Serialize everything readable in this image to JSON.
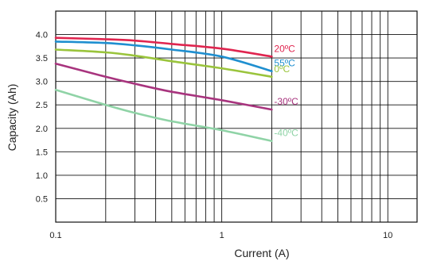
{
  "chart_data": {
    "type": "line",
    "xlabel": "Current (A)",
    "ylabel": "Capacity (Ah)",
    "xscale": "log",
    "xlim": [
      0.1,
      15
    ],
    "ylim": [
      0,
      4.5
    ],
    "grid": true,
    "x_ticks": [
      "0.1",
      "1",
      "10"
    ],
    "y_ticks": [
      "0.5",
      "1.0",
      "1.5",
      "2.0",
      "2.5",
      "3.0",
      "3.5",
      "4.0"
    ],
    "series": [
      {
        "name": "20ºC",
        "color": "#e0254f",
        "x": [
          0.1,
          0.2,
          0.3,
          0.5,
          1,
          2
        ],
        "y": [
          3.93,
          3.9,
          3.87,
          3.8,
          3.7,
          3.53
        ]
      },
      {
        "name": "55ºC",
        "color": "#1f8fd0",
        "x": [
          0.1,
          0.2,
          0.3,
          0.5,
          1,
          2
        ],
        "y": [
          3.85,
          3.82,
          3.77,
          3.68,
          3.53,
          3.22
        ]
      },
      {
        "name": "0ºC",
        "color": "#9ac43c",
        "x": [
          0.1,
          0.2,
          0.3,
          0.5,
          1,
          2
        ],
        "y": [
          3.68,
          3.62,
          3.55,
          3.43,
          3.28,
          3.1
        ]
      },
      {
        "name": "-30ºC",
        "color": "#a8347e",
        "x": [
          0.1,
          0.2,
          0.3,
          0.5,
          1,
          2
        ],
        "y": [
          3.38,
          3.1,
          2.95,
          2.78,
          2.6,
          2.4
        ]
      },
      {
        "name": "-40ºC",
        "color": "#8fd3a6",
        "x": [
          0.1,
          0.2,
          0.3,
          0.5,
          1,
          2
        ],
        "y": [
          2.82,
          2.5,
          2.33,
          2.15,
          1.96,
          1.73
        ]
      }
    ]
  }
}
